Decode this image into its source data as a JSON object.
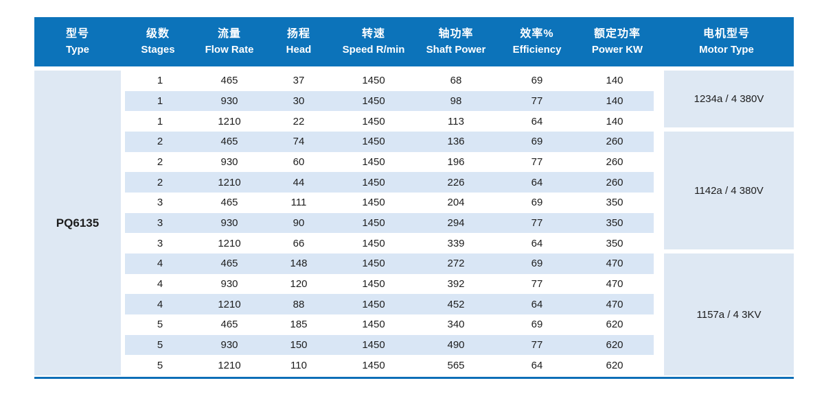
{
  "page": {
    "background": "#ffffff"
  },
  "colors": {
    "header_bg": "#0c73ba",
    "header_text": "#ffffff",
    "row_alt": "#d9e6f5",
    "panel": "#dee8f3",
    "bottom_line": "#0d6eb7",
    "data_text": "#1c1c1c"
  },
  "table": {
    "header_columns": [
      {
        "zh": "型号",
        "en": "Type"
      },
      {
        "zh": "级数",
        "en": "Stages"
      },
      {
        "zh": "流量",
        "en": "Flow Rate"
      },
      {
        "zh": "扬程",
        "en": "Head"
      },
      {
        "zh": "转速",
        "en": "Speed R/min"
      },
      {
        "zh": "轴功率",
        "en": "Shaft Power"
      },
      {
        "zh": "效率%",
        "en": "Efficiency"
      },
      {
        "zh": "额定功率",
        "en": "Power KW"
      },
      {
        "zh": "电机型号",
        "en": "Motor Type"
      }
    ],
    "type_value": "PQ6135",
    "rows": [
      {
        "stages": "1",
        "flow": "465",
        "head": "37",
        "speed": "1450",
        "shaft": "68",
        "eff": "69",
        "power": "140"
      },
      {
        "stages": "1",
        "flow": "930",
        "head": "30",
        "speed": "1450",
        "shaft": "98",
        "eff": "77",
        "power": "140"
      },
      {
        "stages": "1",
        "flow": "1210",
        "head": "22",
        "speed": "1450",
        "shaft": "113",
        "eff": "64",
        "power": "140"
      },
      {
        "stages": "2",
        "flow": "465",
        "head": "74",
        "speed": "1450",
        "shaft": "136",
        "eff": "69",
        "power": "260"
      },
      {
        "stages": "2",
        "flow": "930",
        "head": "60",
        "speed": "1450",
        "shaft": "196",
        "eff": "77",
        "power": "260"
      },
      {
        "stages": "2",
        "flow": "1210",
        "head": "44",
        "speed": "1450",
        "shaft": "226",
        "eff": "64",
        "power": "260"
      },
      {
        "stages": "3",
        "flow": "465",
        "head": "111",
        "speed": "1450",
        "shaft": "204",
        "eff": "69",
        "power": "350"
      },
      {
        "stages": "3",
        "flow": "930",
        "head": "90",
        "speed": "1450",
        "shaft": "294",
        "eff": "77",
        "power": "350"
      },
      {
        "stages": "3",
        "flow": "1210",
        "head": "66",
        "speed": "1450",
        "shaft": "339",
        "eff": "64",
        "power": "350"
      },
      {
        "stages": "4",
        "flow": "465",
        "head": "148",
        "speed": "1450",
        "shaft": "272",
        "eff": "69",
        "power": "470"
      },
      {
        "stages": "4",
        "flow": "930",
        "head": "120",
        "speed": "1450",
        "shaft": "392",
        "eff": "77",
        "power": "470"
      },
      {
        "stages": "4",
        "flow": "1210",
        "head": "88",
        "speed": "1450",
        "shaft": "452",
        "eff": "64",
        "power": "470"
      },
      {
        "stages": "5",
        "flow": "465",
        "head": "185",
        "speed": "1450",
        "shaft": "340",
        "eff": "69",
        "power": "620"
      },
      {
        "stages": "5",
        "flow": "930",
        "head": "150",
        "speed": "1450",
        "shaft": "490",
        "eff": "77",
        "power": "620"
      },
      {
        "stages": "5",
        "flow": "1210",
        "head": "110",
        "speed": "1450",
        "shaft": "565",
        "eff": "64",
        "power": "620"
      }
    ],
    "motor_groups": [
      {
        "label": "1234a / 4  380V",
        "rows": 3
      },
      {
        "label": "1142a / 4  380V",
        "rows": 6
      },
      {
        "label": "1157a / 4  3KV",
        "rows": 6
      }
    ]
  }
}
